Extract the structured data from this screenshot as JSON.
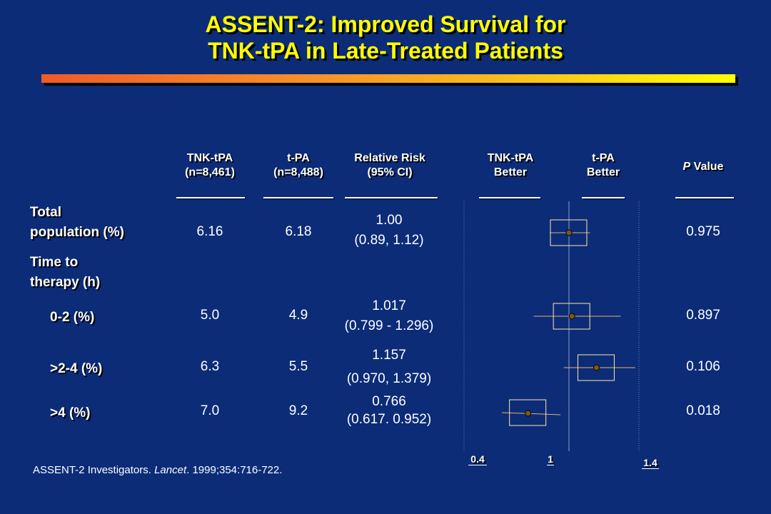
{
  "title": {
    "line1": "ASSENT-2: Improved Survival for",
    "line2": "TNK-tPA in Late-Treated Patients"
  },
  "columns": {
    "tnk": [
      "TNK-tPA",
      "(n=8,461)"
    ],
    "tpa": [
      "t-PA",
      "(n=8,488)"
    ],
    "rr": [
      "Relative Risk",
      "(95% CI)"
    ],
    "tnk_better": [
      "TNK-tPA",
      "Better"
    ],
    "tpa_better": [
      "t-PA",
      "Better"
    ],
    "p_italic": "P",
    "p_rest": " Value"
  },
  "rows": [
    {
      "label": [
        "Total",
        "population (%)"
      ],
      "tnk": "6.16",
      "tpa": "6.18",
      "rr": "1.00",
      "ci": "(0.89, 1.12)",
      "p": "0.975"
    },
    {
      "label": [
        "Time to",
        "therapy (h)"
      ]
    },
    {
      "label": [
        "0-2 (%)"
      ],
      "tnk": "5.0",
      "tpa": "4.9",
      "rr": "1.017",
      "ci": "(0.799 - 1.296)",
      "p": "0.897"
    },
    {
      "label": [
        ">2-4 (%)"
      ],
      "tnk": "6.3",
      "tpa": "5.5",
      "rr": "1.157",
      "ci": "(0.970, 1.379)",
      "p": "0.106"
    },
    {
      "label": [
        ">4 (%)"
      ],
      "tnk": "7.0",
      "tpa": "9.2",
      "rr": "0.766",
      "ci": "(0.617. 0.952)",
      "p": "0.018"
    }
  ],
  "axis": {
    "ticks": [
      "0.4",
      "1",
      "1.4"
    ]
  },
  "citation": {
    "pre": "ASSENT-2 Investigators. ",
    "journal": "Lancet",
    "post": ". 1999;354:716-722."
  },
  "colors": {
    "background": "#0c2c78",
    "title": "#ffff00",
    "marker_box": "#ffe8a0",
    "ci_line": "#e8b070",
    "point": "#7a5a10"
  },
  "chart_data": {
    "type": "forest",
    "x_scale": "ratio",
    "xlim": [
      0.4,
      1.4
    ],
    "reference_line": 1,
    "ticks": [
      0.4,
      1,
      1.4
    ],
    "points": [
      {
        "label": "Total population (%)",
        "estimate": 1.0,
        "ci": [
          0.89,
          1.12
        ]
      },
      {
        "label": "0-2 (%)",
        "estimate": 1.017,
        "ci": [
          0.799,
          1.296
        ]
      },
      {
        "label": ">2-4 (%)",
        "estimate": 1.157,
        "ci": [
          0.97,
          1.379
        ]
      },
      {
        "label": ">4 (%)",
        "estimate": 0.766,
        "ci": [
          0.617,
          0.952
        ]
      }
    ]
  }
}
